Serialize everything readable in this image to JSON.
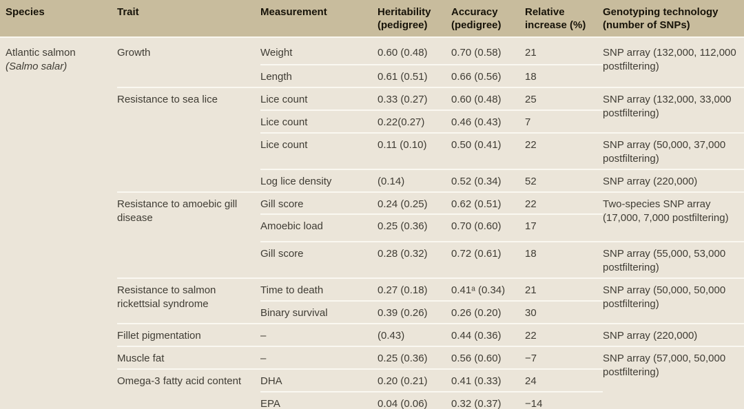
{
  "table": {
    "headers": [
      {
        "id": "species",
        "label": "Species"
      },
      {
        "id": "trait",
        "label": "Trait"
      },
      {
        "id": "measurement",
        "label": "Measurement"
      },
      {
        "id": "heritability",
        "label": "Heritability\n(pedigree)"
      },
      {
        "id": "accuracy",
        "label": "Accuracy\n(pedigree)"
      },
      {
        "id": "relative",
        "label": "Relative\nincrease (%)"
      },
      {
        "id": "genotyping",
        "label": "Genotyping technology\n(number of SNPs)"
      }
    ],
    "rows": [
      {
        "h": 40,
        "cells": [
          {
            "col": "species",
            "name": "Atlantic salmon",
            "latin": "(Salmo salar)",
            "rowspan": 15
          },
          {
            "col": "trait",
            "text": "Growth",
            "rowspan": 2
          },
          {
            "col": "measurement",
            "text": "Weight"
          },
          {
            "col": "heritability",
            "text": "0.60 (0.48)"
          },
          {
            "col": "accuracy",
            "text": "0.70 (0.58)"
          },
          {
            "col": "relative",
            "text": "21"
          },
          {
            "col": "genotyping",
            "text": "SNP array (132,000, 112,000 postfiltering)",
            "rowspan": 2
          }
        ]
      },
      {
        "h": 33,
        "cells": [
          {
            "col": "measurement",
            "text": "Length"
          },
          {
            "col": "heritability",
            "text": "0.61 (0.51)"
          },
          {
            "col": "accuracy",
            "text": "0.66 (0.56)"
          },
          {
            "col": "relative",
            "text": "18"
          }
        ]
      },
      {
        "h": 33,
        "cells": [
          {
            "col": "trait",
            "text": "Resistance to sea lice",
            "rowspan": 4
          },
          {
            "col": "measurement",
            "text": "Lice count"
          },
          {
            "col": "heritability",
            "text": "0.33 (0.27)"
          },
          {
            "col": "accuracy",
            "text": "0.60 (0.48)"
          },
          {
            "col": "relative",
            "text": "25"
          },
          {
            "col": "genotyping",
            "text": "SNP array (132,000, 33,000 postfiltering)",
            "rowspan": 2
          }
        ]
      },
      {
        "h": 33,
        "cells": [
          {
            "col": "measurement",
            "text": "Lice count"
          },
          {
            "col": "heritability",
            "text": "0.22(0.27)"
          },
          {
            "col": "accuracy",
            "text": "0.46 (0.43)"
          },
          {
            "col": "relative",
            "text": "7"
          }
        ]
      },
      {
        "h": 53,
        "cells": [
          {
            "col": "measurement",
            "text": "Lice count"
          },
          {
            "col": "heritability",
            "text": "0.11 (0.10)"
          },
          {
            "col": "accuracy",
            "text": "0.50 (0.41)"
          },
          {
            "col": "relative",
            "text": "22"
          },
          {
            "col": "genotyping",
            "text": "SNP array (50,000, 37,000 postfiltering)"
          }
        ]
      },
      {
        "h": 33,
        "cells": [
          {
            "col": "measurement",
            "text": "Log lice density"
          },
          {
            "col": "heritability",
            "text": "(0.14)"
          },
          {
            "col": "accuracy",
            "text": "0.52 (0.34)"
          },
          {
            "col": "relative",
            "text": "52"
          },
          {
            "col": "genotyping",
            "text": "SNP array (220,000)"
          }
        ]
      },
      {
        "h": 32,
        "cells": [
          {
            "col": "trait",
            "text": "Resistance to amoebic gill disease",
            "rowspan": 3
          },
          {
            "col": "measurement",
            "text": "Gill score"
          },
          {
            "col": "heritability",
            "text": "0.24 (0.25)"
          },
          {
            "col": "accuracy",
            "text": "0.62 (0.51)"
          },
          {
            "col": "relative",
            "text": "22"
          },
          {
            "col": "genotyping",
            "text": "Two-species SNP array (17,000, 7,000 postfiltering)",
            "rowspan": 2
          }
        ]
      },
      {
        "h": 40,
        "cells": [
          {
            "col": "measurement",
            "text": "Amoebic load"
          },
          {
            "col": "heritability",
            "text": "0.25 (0.36)"
          },
          {
            "col": "accuracy",
            "text": "0.70 (0.60)"
          },
          {
            "col": "relative",
            "text": "17"
          }
        ]
      },
      {
        "h": 53,
        "cells": [
          {
            "col": "measurement",
            "text": "Gill score"
          },
          {
            "col": "heritability",
            "text": "0.28 (0.32)"
          },
          {
            "col": "accuracy",
            "text": "0.72 (0.61)"
          },
          {
            "col": "relative",
            "text": "18"
          },
          {
            "col": "genotyping",
            "text": "SNP array (55,000, 53,000 postfiltering)"
          }
        ]
      },
      {
        "h": 33,
        "cells": [
          {
            "col": "trait",
            "text": "Resistance to salmon rickettsial syndrome",
            "rowspan": 2
          },
          {
            "col": "measurement",
            "text": "Time to death"
          },
          {
            "col": "heritability",
            "text": "0.27 (0.18)"
          },
          {
            "col": "accuracy",
            "text": "0.41ᵃ (0.34)"
          },
          {
            "col": "relative",
            "text": "21"
          },
          {
            "col": "genotyping",
            "text": "SNP array (50,000, 50,000 postfiltering)",
            "rowspan": 2
          }
        ]
      },
      {
        "h": 33,
        "cells": [
          {
            "col": "measurement",
            "text": "Binary survival"
          },
          {
            "col": "heritability",
            "text": "0.39 (0.26)"
          },
          {
            "col": "accuracy",
            "text": "0.26 (0.20)"
          },
          {
            "col": "relative",
            "text": "30"
          }
        ]
      },
      {
        "h": 33,
        "cells": [
          {
            "col": "trait",
            "text": "Fillet pigmentation"
          },
          {
            "col": "measurement",
            "text": "–"
          },
          {
            "col": "heritability",
            "text": "(0.43)"
          },
          {
            "col": "accuracy",
            "text": "0.44 (0.36)"
          },
          {
            "col": "relative",
            "text": "22"
          },
          {
            "col": "genotyping",
            "text": "SNP array (220,000)"
          }
        ]
      },
      {
        "h": 33,
        "cells": [
          {
            "col": "trait",
            "text": "Muscle fat"
          },
          {
            "col": "measurement",
            "text": "–"
          },
          {
            "col": "heritability",
            "text": "0.25 (0.36)"
          },
          {
            "col": "accuracy",
            "text": "0.56 (0.60)"
          },
          {
            "col": "relative",
            "text": "−7"
          },
          {
            "col": "genotyping",
            "text": "SNP array (57,000, 50,000 postfiltering)",
            "rowspan": 3
          }
        ]
      },
      {
        "h": 33,
        "cells": [
          {
            "col": "trait",
            "text": "Omega-3 fatty acid content",
            "rowspan": 2
          },
          {
            "col": "measurement",
            "text": "DHA"
          },
          {
            "col": "heritability",
            "text": "0.20 (0.21)"
          },
          {
            "col": "accuracy",
            "text": "0.41 (0.33)"
          },
          {
            "col": "relative",
            "text": "24"
          }
        ]
      },
      {
        "h": 28,
        "cells": [
          {
            "col": "measurement",
            "text": "EPA"
          },
          {
            "col": "heritability",
            "text": "0.04 (0.06)"
          },
          {
            "col": "accuracy",
            "text": "0.32 (0.37)"
          },
          {
            "col": "relative",
            "text": "−14"
          }
        ]
      }
    ],
    "colors": {
      "header_bg": "#c8bc9d",
      "body_bg": "#ebe5d9",
      "separator": "#faf8f1",
      "header_text": "#171309",
      "body_text": "#3f3c34"
    }
  }
}
